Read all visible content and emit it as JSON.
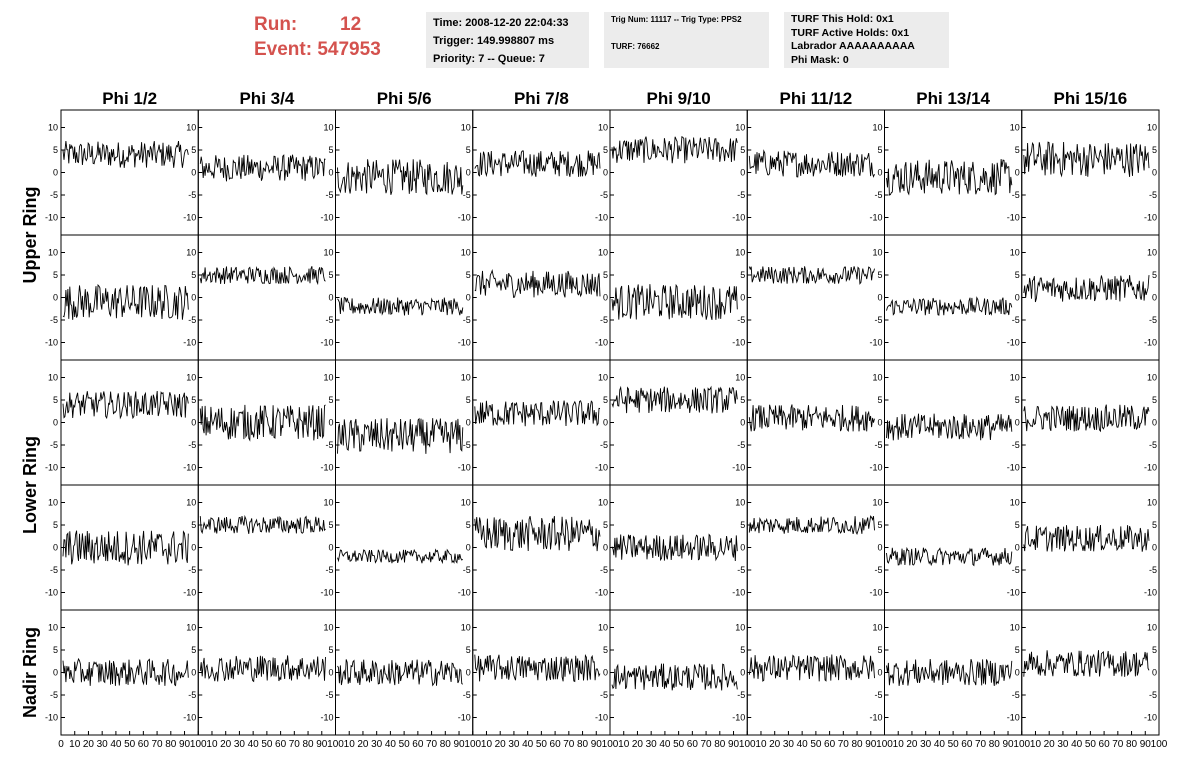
{
  "header": {
    "run_label": "Run:",
    "run_value": "12",
    "event_label": "Event:",
    "event_value": "547953",
    "time_line": "Time: 2008-12-20 22:04:33",
    "trigger_line": "Trigger: 149.998807 ms",
    "priority_line": "Priority: 7 -- Queue: 7",
    "trig_line": "Trig Num: 11117 -- Trig Type: PPS2",
    "turf_line": "TURF: 76662",
    "turf_hold_line": "TURF This Hold: 0x1",
    "turf_active_line": "TURF Active Holds: 0x1",
    "labrador_line": "Labrador AAAAAAAAAA",
    "phimask_line": "Phi Mask: 0"
  },
  "chart_data": {
    "type": "line",
    "grid": false,
    "columns": [
      "Phi 1/2",
      "Phi 3/4",
      "Phi 5/6",
      "Phi 7/8",
      "Phi 9/10",
      "Phi 11/12",
      "Phi 13/14",
      "Phi 15/16"
    ],
    "ring_labels": [
      "Upper Ring",
      "Lower Ring",
      "Nadir Ring"
    ],
    "rows_per_ring": [
      2,
      2,
      1
    ],
    "xlim": [
      0,
      100
    ],
    "ylim": [
      -13,
      13
    ],
    "xticks": [
      0,
      10,
      20,
      30,
      40,
      50,
      60,
      70,
      80,
      90,
      100
    ],
    "yticks": [
      -10,
      -5,
      0,
      5,
      10
    ],
    "samples_per_trace": 130,
    "trace_baselines": [
      [
        4,
        1,
        -1,
        2,
        5,
        2,
        -1,
        3
      ],
      [
        -1,
        5,
        -2,
        3,
        -1,
        5,
        -2,
        2
      ],
      [
        4,
        0,
        -3,
        2,
        5,
        1,
        -1,
        1
      ],
      [
        0,
        5,
        -2,
        3,
        0,
        5,
        -2,
        2
      ],
      [
        0,
        1,
        0,
        1,
        -1,
        1,
        0,
        2
      ]
    ],
    "trace_amplitudes": [
      [
        3,
        3,
        4,
        3,
        3,
        3,
        4,
        4
      ],
      [
        4,
        2,
        2,
        3,
        4,
        2,
        2,
        3
      ],
      [
        3,
        4,
        4,
        3,
        3,
        3,
        3,
        3
      ],
      [
        4,
        2,
        1.5,
        4,
        3,
        2,
        2,
        3
      ],
      [
        3,
        3,
        3,
        3,
        3,
        3,
        3,
        3
      ]
    ]
  }
}
